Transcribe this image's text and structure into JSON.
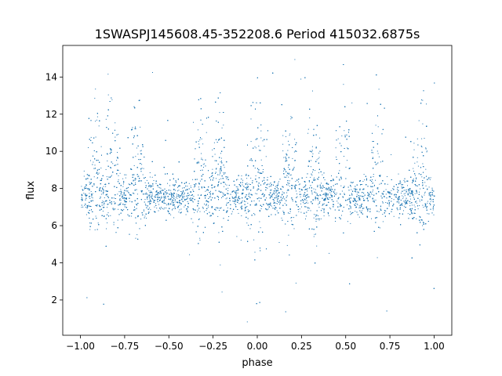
{
  "chart_data": {
    "type": "scatter",
    "title": "1SWASPJ145608.45-352208.6 Period 415032.6875s",
    "xlabel": "phase",
    "ylabel": "flux",
    "xlim": [
      -1.1,
      1.1
    ],
    "ylim": [
      0.1,
      15.7
    ],
    "xticks": [
      -1.0,
      -0.75,
      -0.5,
      -0.25,
      0.0,
      0.25,
      0.5,
      0.75,
      1.0
    ],
    "xtick_labels": [
      "−1.00",
      "−0.75",
      "−0.50",
      "−0.25",
      "0.00",
      "0.25",
      "0.50",
      "0.75",
      "1.00"
    ],
    "yticks": [
      2,
      4,
      6,
      8,
      10,
      12,
      14
    ],
    "ytick_labels": [
      "2",
      "4",
      "6",
      "8",
      "10",
      "12",
      "14"
    ],
    "grid": false,
    "legend": "none",
    "series": [
      {
        "color": "#1f77b4",
        "marker": "point",
        "x_range": [
          -1.0,
          1.0
        ],
        "baseline_flux": 7.6,
        "typical_spread": [
          5.5,
          10.0
        ],
        "outlier_range": [
          0.8,
          15.2
        ],
        "dense_spikes_phase": [
          -0.92,
          -0.82,
          -0.68,
          -0.32,
          -0.22,
          -0.02,
          0.02,
          0.18,
          0.32,
          0.48,
          0.68,
          0.92
        ],
        "approx_points": 9000
      }
    ]
  }
}
